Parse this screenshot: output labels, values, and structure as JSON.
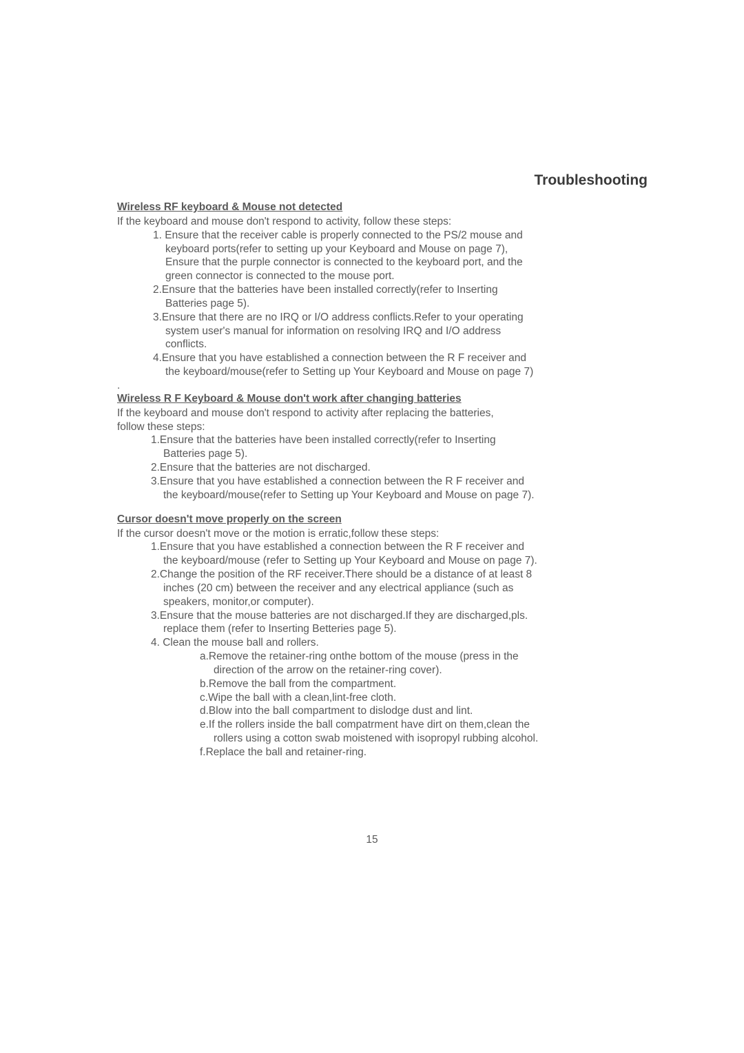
{
  "title": "Troubleshooting",
  "sec1": {
    "heading": "Wireless RF keyboard & Mouse not detected",
    "intro": "If the keyboard and mouse don't respond to activity, follow these steps:",
    "i1a": "1. Ensure that the receiver cable is properly connected to the PS/2 mouse and",
    "i1b": "keyboard ports(refer to setting up your Keyboard and Mouse on page 7),",
    "i1c": "Ensure that the purple connector is connected to the keyboard port, and the",
    "i1d": "green connector is connected to the mouse port.",
    "i2a": "2.Ensure that the batteries have been installed correctly(refer to Inserting",
    "i2b": "Batteries page 5).",
    "i3a": "3.Ensure that there are no IRQ or I/O address conflicts.Refer to your operating",
    "i3b": "system user's manual for information on resolving IRQ and I/O address",
    "i3c": "conflicts.",
    "i4a": "4.Ensure that you have established a connection between the R F receiver and",
    "i4b": "the keyboard/mouse(refer to Setting up Your Keyboard and Mouse on page 7)"
  },
  "dot": ".",
  "sec2": {
    "heading": "Wireless R F Keyboard & Mouse don't work after changing batteries",
    "introA": "If the keyboard and mouse don't respond to activity after replacing the batteries,",
    "introB": "follow these steps:",
    "i1a": "1.Ensure that the batteries have been installed correctly(refer to Inserting",
    "i1b": "Batteries page 5).",
    "i2a": "2.Ensure that the batteries are not discharged.",
    "i3a": "3.Ensure that you have established a connection between the R F receiver and",
    "i3b": "the keyboard/mouse(refer to Setting up Your Keyboard and Mouse on page 7)."
  },
  "sec3": {
    "heading": "Cursor doesn't move properly on the screen",
    "intro": "If the cursor doesn't move or the motion is erratic,follow these steps:",
    "i1a": "1.Ensure that you have established a connection between the R F receiver and",
    "i1b": "the keyboard/mouse (refer to Setting up Your Keyboard and Mouse on page 7).",
    "i2a": "2.Change the position of the RF receiver.There should be a distance of at least 8",
    "i2b": "inches (20 cm) between the receiver and any electrical appliance (such as",
    "i2c": "speakers, monitor,or computer).",
    "i3a": "3.Ensure that the mouse batteries are not discharged.If they are discharged,pls.",
    "i3b": "replace them (refer to Inserting Betteries page 5).",
    "i4": " 4. Clean the mouse ball and rollers.",
    "sa1": "a.Remove the retainer-ring onthe bottom of the mouse (press in the",
    "sa2": "direction of the arrow on the  retainer-ring cover).",
    "sb": "b.Remove the ball from the compartment.",
    "sc": "c.Wipe the ball with a clean,lint-free cloth.",
    "sd": "d.Blow into the ball compartment to dislodge dust and lint.",
    "se1": "e.If the rollers inside the ball compatrment have dirt on them,clean the",
    "se2": "rollers using a cotton swab moistened with isopropyl rubbing alcohol.",
    "sf": " f.Replace the ball and retainer-ring."
  },
  "pageNum": "15"
}
